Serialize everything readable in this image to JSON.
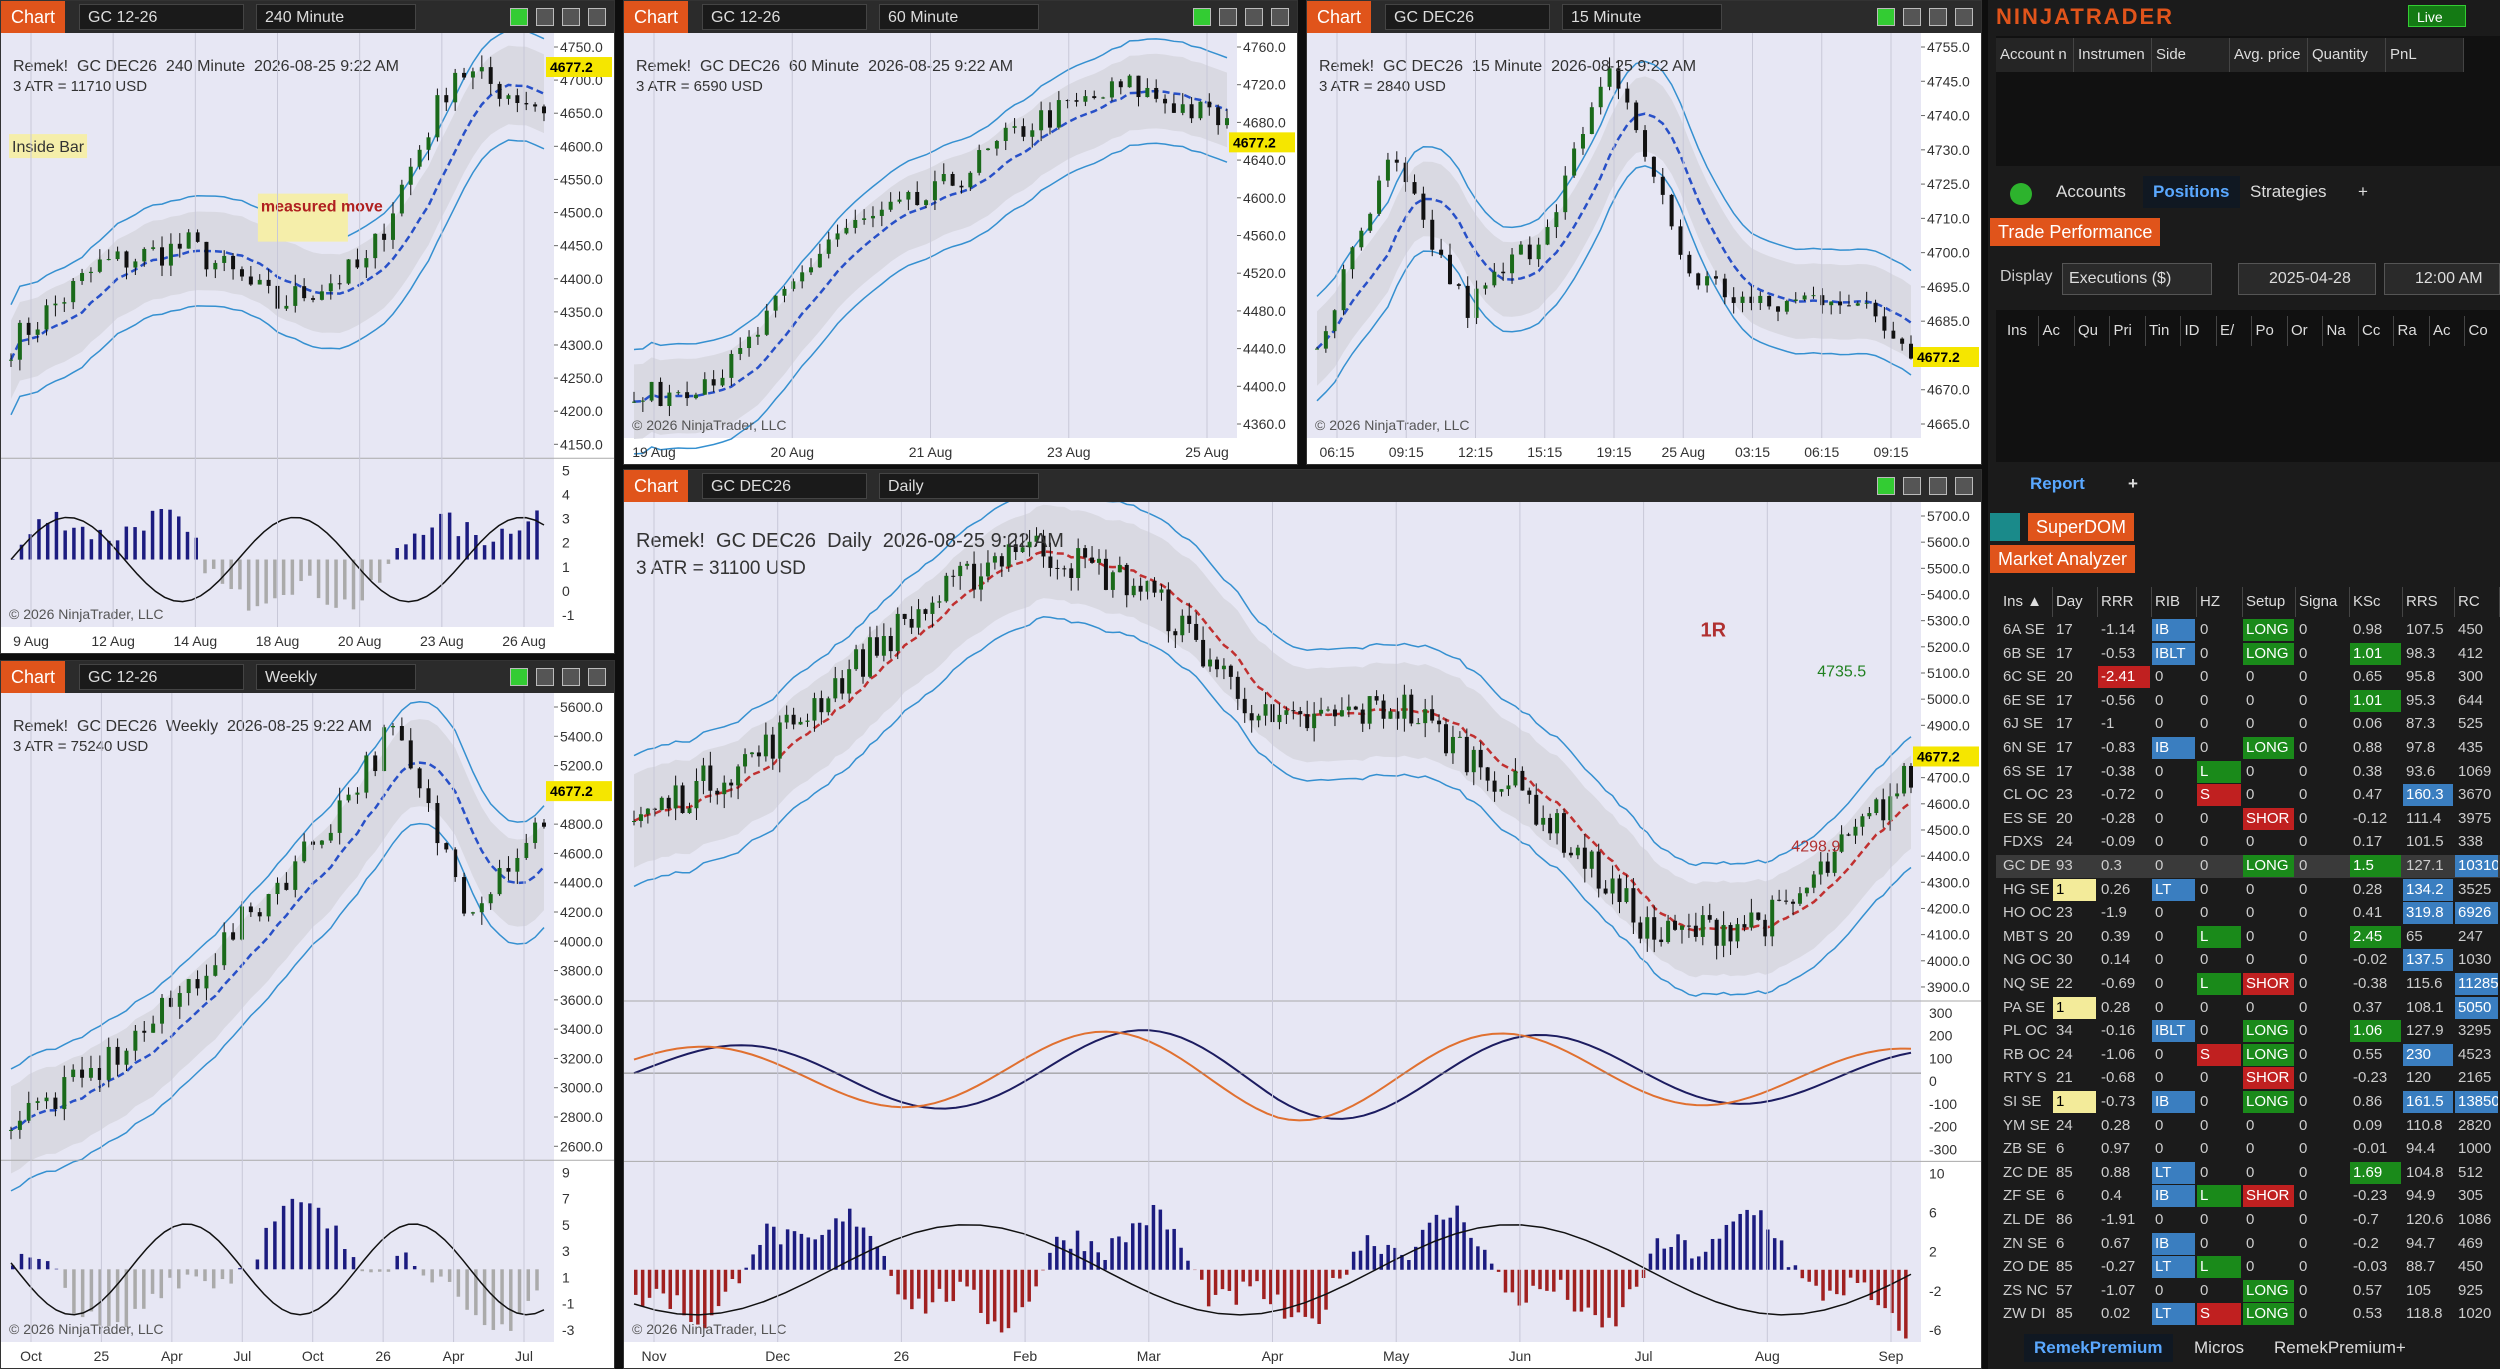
{
  "charts": [
    {
      "tab": "Chart",
      "instrument": "GC 12-26",
      "interval": "240 Minute",
      "header": "Remek!  GC DEC26  240 Minute  2026-08-25 9:22 AM",
      "atr": "3 ATR = 11710 USD",
      "price_tag": "4677.2",
      "price_ticks": [
        "4750.0",
        "4700.0",
        "4650.0",
        "4600.0",
        "4550.0",
        "4500.0",
        "4450.0",
        "4400.0",
        "4350.0",
        "4300.0",
        "4250.0",
        "4200.0",
        "4150.0"
      ],
      "lower_ticks": [
        [
          "5",
          "4",
          "3",
          "2",
          "1",
          "0",
          "-1"
        ]
      ],
      "x_ticks": [
        "9 Aug",
        "12 Aug",
        "14 Aug",
        "18 Aug",
        "20 Aug",
        "23 Aug",
        "26 Aug"
      ],
      "copyright": "© 2026 NinjaTrader, LLC",
      "notes": [
        "Inside Bar",
        "measured move"
      ]
    },
    {
      "tab": "Chart",
      "instrument": "GC 12-26",
      "interval": "60 Minute",
      "header": "Remek!  GC DEC26  60 Minute  2026-08-25 9:22 AM",
      "atr": "3 ATR = 6590 USD",
      "price_tag": "4677.2",
      "price_ticks": [
        "4760.0",
        "4720.0",
        "4680.0",
        "4640.0",
        "4600.0",
        "4560.0",
        "4520.0",
        "4480.0",
        "4440.0",
        "4400.0",
        "4360.0"
      ],
      "lower_ticks": [],
      "x_ticks": [
        "19 Aug",
        "20 Aug",
        "21 Aug",
        "23 Aug",
        "25 Aug"
      ],
      "copyright": "© 2026 NinjaTrader, LLC",
      "notes": []
    },
    {
      "tab": "Chart",
      "instrument": "GC DEC26",
      "interval": "15 Minute",
      "header": "Remek!  GC DEC26  15 Minute  2026-08-25 9:22 AM",
      "atr": "3 ATR = 2840 USD",
      "price_tag": "4677.2",
      "price_ticks": [
        "4755.0",
        "4745.0",
        "4740.0",
        "4730.0",
        "4725.0",
        "4710.0",
        "4700.0",
        "4695.0",
        "4685.0",
        "4680.0",
        "4670.0",
        "4665.0"
      ],
      "lower_ticks": [],
      "x_ticks": [
        "06:15",
        "09:15",
        "12:15",
        "15:15",
        "19:15",
        "25 Aug",
        "03:15",
        "06:15",
        "09:15"
      ],
      "copyright": "© 2026 NinjaTrader, LLC",
      "notes": []
    },
    {
      "tab": "Chart",
      "instrument": "GC 12-26",
      "interval": "Weekly",
      "header": "Remek!  GC DEC26  Weekly  2026-08-25 9:22 AM",
      "atr": "3 ATR = 75240 USD",
      "price_tag": "4677.2",
      "price_ticks": [
        "5600.0",
        "5400.0",
        "5200.0",
        "5000.0",
        "4800.0",
        "4600.0",
        "4400.0",
        "4200.0",
        "4000.0",
        "3800.0",
        "3600.0",
        "3400.0",
        "3200.0",
        "3000.0",
        "2800.0",
        "2600.0"
      ],
      "lower_ticks": [
        [
          "9",
          "7",
          "5",
          "3",
          "1",
          "-1",
          "-3"
        ]
      ],
      "x_ticks": [
        "Oct",
        "25",
        "Apr",
        "Jul",
        "Oct",
        "26",
        "Apr",
        "Jul"
      ],
      "copyright": "© 2026 NinjaTrader, LLC",
      "notes": []
    },
    {
      "tab": "Chart",
      "instrument": "GC DEC26",
      "interval": "Daily",
      "header": "Remek!  GC DEC26  Daily  2026-08-25 9:22 AM",
      "atr": "3 ATR = 31100 USD",
      "price_tag": "4677.2",
      "price_ticks": [
        "5700.0",
        "5600.0",
        "5500.0",
        "5400.0",
        "5300.0",
        "5200.0",
        "5100.0",
        "5000.0",
        "4900.0",
        "4800.0",
        "4700.0",
        "4600.0",
        "4500.0",
        "4400.0",
        "4300.0",
        "4200.0",
        "4100.0",
        "4000.0",
        "3900.0"
      ],
      "lower_ticks": [
        [
          "300",
          "200",
          "100",
          "0",
          "-100",
          "-200",
          "-300"
        ],
        [
          "10",
          "6",
          "2",
          "-2",
          "-6"
        ]
      ],
      "x_ticks": [
        "Nov",
        "Dec",
        "26",
        "Feb",
        "Mar",
        "Apr",
        "May",
        "Jun",
        "Jul",
        "Aug",
        "Sep"
      ],
      "copyright": "© 2026 NinjaTrader, LLC",
      "notes": [
        "1R",
        "4735.5",
        "4298.9"
      ]
    }
  ],
  "app": {
    "brand": "NINJATRADER",
    "live": "Live",
    "positions": {
      "columns": [
        "Account n",
        "Instrumen",
        "Side",
        "Avg. price",
        "Quantity",
        "PnL"
      ],
      "tabs": [
        "Accounts",
        "Positions",
        "Strategies",
        "+"
      ]
    },
    "trade_performance": {
      "title": "Trade Performance",
      "display_label": "Display",
      "display": "Executions ($)",
      "date": "2025-04-28",
      "time": "12:00 AM",
      "columns": [
        "Ins",
        "Ac",
        "Qu",
        "Pri",
        "Tin",
        "ID",
        "E/",
        "Po",
        "Or",
        "Na",
        "Cc",
        "Ra",
        "Ac",
        "Co"
      ],
      "tabs": [
        "Report",
        "+"
      ]
    },
    "superdom": "SuperDOM",
    "market_analyzer": {
      "title": "Market Analyzer",
      "columns": [
        "Ins ▲",
        "Day",
        "RRR",
        "RIB",
        "HZ",
        "Setup",
        "Signa",
        "KSc",
        "RRS",
        "RC"
      ],
      "rows": [
        [
          "6A SE",
          "17",
          "-1.14",
          "IB",
          "0",
          "LONG",
          "0",
          "0.98",
          "107.5",
          "450"
        ],
        [
          "6B SE",
          "17",
          "-0.53",
          "IBLT",
          "0",
          "LONG",
          "0",
          "1.01",
          "98.3",
          "412"
        ],
        [
          "6C SE",
          "20",
          "-2.41",
          "0",
          "0",
          "0",
          "0",
          "0.65",
          "95.8",
          "300"
        ],
        [
          "6E SE",
          "17",
          "-0.56",
          "0",
          "0",
          "0",
          "0",
          "1.01",
          "95.3",
          "644"
        ],
        [
          "6J SE",
          "17",
          "-1",
          "0",
          "0",
          "0",
          "0",
          "0.06",
          "87.3",
          "525"
        ],
        [
          "6N SE",
          "17",
          "-0.83",
          "IB",
          "0",
          "LONG",
          "0",
          "0.88",
          "97.8",
          "435"
        ],
        [
          "6S SE",
          "17",
          "-0.38",
          "0",
          "L",
          "0",
          "0",
          "0.38",
          "93.6",
          "1069"
        ],
        [
          "CL OC",
          "23",
          "-0.72",
          "0",
          "S",
          "0",
          "0",
          "0.47",
          "160.3",
          "3670"
        ],
        [
          "ES SE",
          "20",
          "-0.28",
          "0",
          "0",
          "SHOR",
          "0",
          "-0.12",
          "111.4",
          "3975"
        ],
        [
          "FDXS",
          "24",
          "-0.09",
          "0",
          "0",
          "0",
          "0",
          "0.17",
          "101.5",
          "338"
        ],
        [
          "GC DE",
          "93",
          "0.3",
          "0",
          "0",
          "LONG",
          "0",
          "1.5",
          "127.1",
          "10310"
        ],
        [
          "HG SE",
          "1",
          "0.26",
          "LT",
          "0",
          "0",
          "0",
          "0.28",
          "134.2",
          "3525"
        ],
        [
          "HO OC",
          "23",
          "-1.9",
          "0",
          "0",
          "0",
          "0",
          "0.41",
          "319.8",
          "6926"
        ],
        [
          "MBT S",
          "20",
          "0.39",
          "0",
          "L",
          "0",
          "0",
          "2.45",
          "65",
          "247"
        ],
        [
          "NG OC",
          "30",
          "0.14",
          "0",
          "0",
          "0",
          "0",
          "-0.02",
          "137.5",
          "1030"
        ],
        [
          "NQ SE",
          "22",
          "-0.69",
          "0",
          "L",
          "SHOR",
          "0",
          "-0.38",
          "115.6",
          "11285"
        ],
        [
          "PA SE",
          "1",
          "0.28",
          "0",
          "0",
          "0",
          "0",
          "0.37",
          "108.1",
          "5050"
        ],
        [
          "PL OC",
          "34",
          "-0.16",
          "IBLT",
          "0",
          "LONG",
          "0",
          "1.06",
          "127.9",
          "3295"
        ],
        [
          "RB OC",
          "24",
          "-1.06",
          "0",
          "S",
          "LONG",
          "0",
          "0.55",
          "230",
          "4523"
        ],
        [
          "RTY S",
          "21",
          "-0.68",
          "0",
          "0",
          "SHOR",
          "0",
          "-0.23",
          "120",
          "2165"
        ],
        [
          "SI SE",
          "1",
          "-0.73",
          "IB",
          "0",
          "LONG",
          "0",
          "0.86",
          "161.5",
          "13850"
        ],
        [
          "YM SE",
          "24",
          "0.28",
          "0",
          "0",
          "0",
          "0",
          "0.09",
          "110.8",
          "2820"
        ],
        [
          "ZB SE",
          "6",
          "0.97",
          "0",
          "0",
          "0",
          "0",
          "-0.01",
          "94.4",
          "1000"
        ],
        [
          "ZC DE",
          "85",
          "0.88",
          "LT",
          "0",
          "0",
          "0",
          "1.69",
          "104.8",
          "512"
        ],
        [
          "ZF SE",
          "6",
          "0.4",
          "IB",
          "L",
          "SHOR",
          "0",
          "-0.23",
          "94.9",
          "305"
        ],
        [
          "ZL DE",
          "86",
          "-1.91",
          "0",
          "0",
          "0",
          "0",
          "-0.7",
          "120.6",
          "1086"
        ],
        [
          "ZN SE",
          "6",
          "0.67",
          "IB",
          "0",
          "0",
          "0",
          "-0.2",
          "94.7",
          "469"
        ],
        [
          "ZO DE",
          "85",
          "-0.27",
          "LT",
          "L",
          "0",
          "0",
          "-0.03",
          "88.7",
          "450"
        ],
        [
          "ZS NC",
          "57",
          "-1.07",
          "0",
          "0",
          "LONG",
          "0",
          "0.57",
          "105",
          "925"
        ],
        [
          "ZW DI",
          "85",
          "0.02",
          "LT",
          "S",
          "LONG",
          "0",
          "0.53",
          "118.8",
          "1020"
        ]
      ],
      "tabs": [
        "RemekPremium",
        "Micros",
        "RemekPremium+"
      ]
    }
  }
}
